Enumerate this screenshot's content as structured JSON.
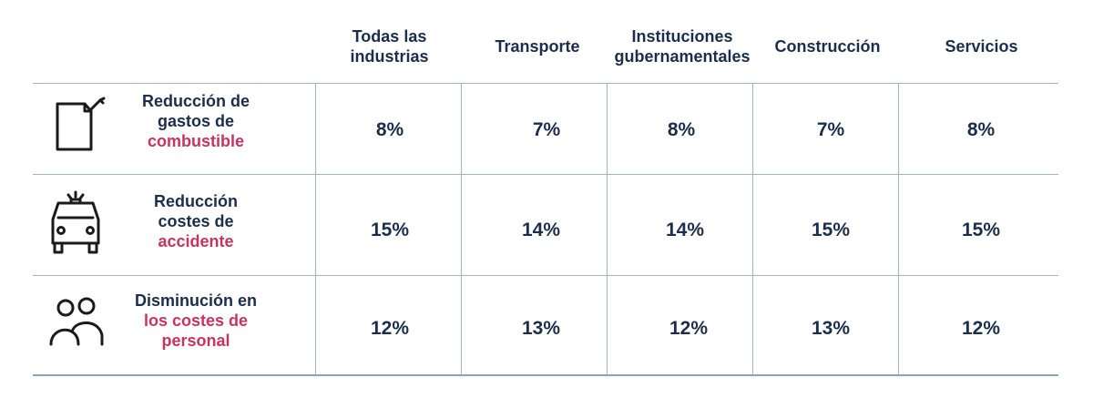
{
  "chart_data": {
    "type": "table",
    "columns": [
      "Todas las industrias",
      "Transporte",
      "Instituciones gubernamentales",
      "Construcción",
      "Servicios"
    ],
    "rows": [
      {
        "icon": "fuel-can-icon",
        "label_prefix": "Reducción de gastos de",
        "label_accent": "combustible",
        "values": [
          "8%",
          "7%",
          "8%",
          "7%",
          "8%"
        ]
      },
      {
        "icon": "car-siren-icon",
        "label_prefix": "Reducción costes de",
        "label_accent": "accidente",
        "values": [
          "15%",
          "14%",
          "14%",
          "15%",
          "15%"
        ]
      },
      {
        "icon": "people-icon",
        "label_prefix": "Disminución en",
        "label_accent": "los costes de personal",
        "values": [
          "12%",
          "13%",
          "12%",
          "13%",
          "12%"
        ]
      }
    ]
  },
  "colors": {
    "text": "#1b2e4b",
    "accent": "#c8335f",
    "grid": "#9fb4c6"
  }
}
